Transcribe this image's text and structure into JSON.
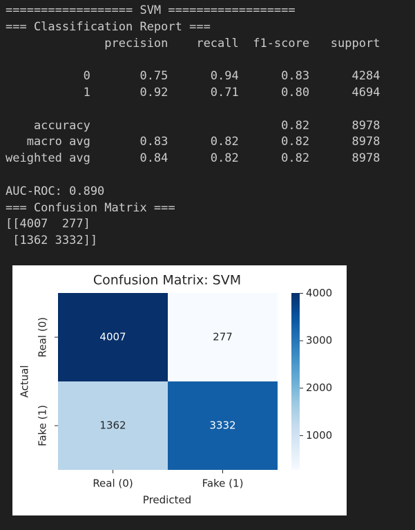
{
  "console": {
    "blocks": [
      [
        "================== SVM ==================",
        "=== Classification Report ===",
        "              precision    recall  f1-score   support"
      ],
      [
        "           0       0.75      0.94      0.83      4284",
        "           1       0.92      0.71      0.80      4694"
      ],
      [
        "    accuracy                           0.82      8978",
        "   macro avg       0.83      0.82      0.82      8978",
        "weighted avg       0.84      0.82      0.82      8978"
      ],
      [
        "AUC-ROC: 0.890",
        "=== Confusion Matrix ===",
        "[[4007  277]",
        " [1362 3332]]"
      ]
    ]
  },
  "chart_data": {
    "type": "heatmap",
    "title": "Confusion Matrix: SVM",
    "x_label": "Predicted",
    "y_label": "Actual",
    "x_categories": [
      "Real (0)",
      "Fake (1)"
    ],
    "y_categories": [
      "Real (0)",
      "Fake (1)"
    ],
    "values": [
      [
        4007,
        277
      ],
      [
        1362,
        3332
      ]
    ],
    "colormap": "Blues",
    "colorbar_ticks": [
      1000,
      2000,
      3000,
      4000
    ]
  }
}
